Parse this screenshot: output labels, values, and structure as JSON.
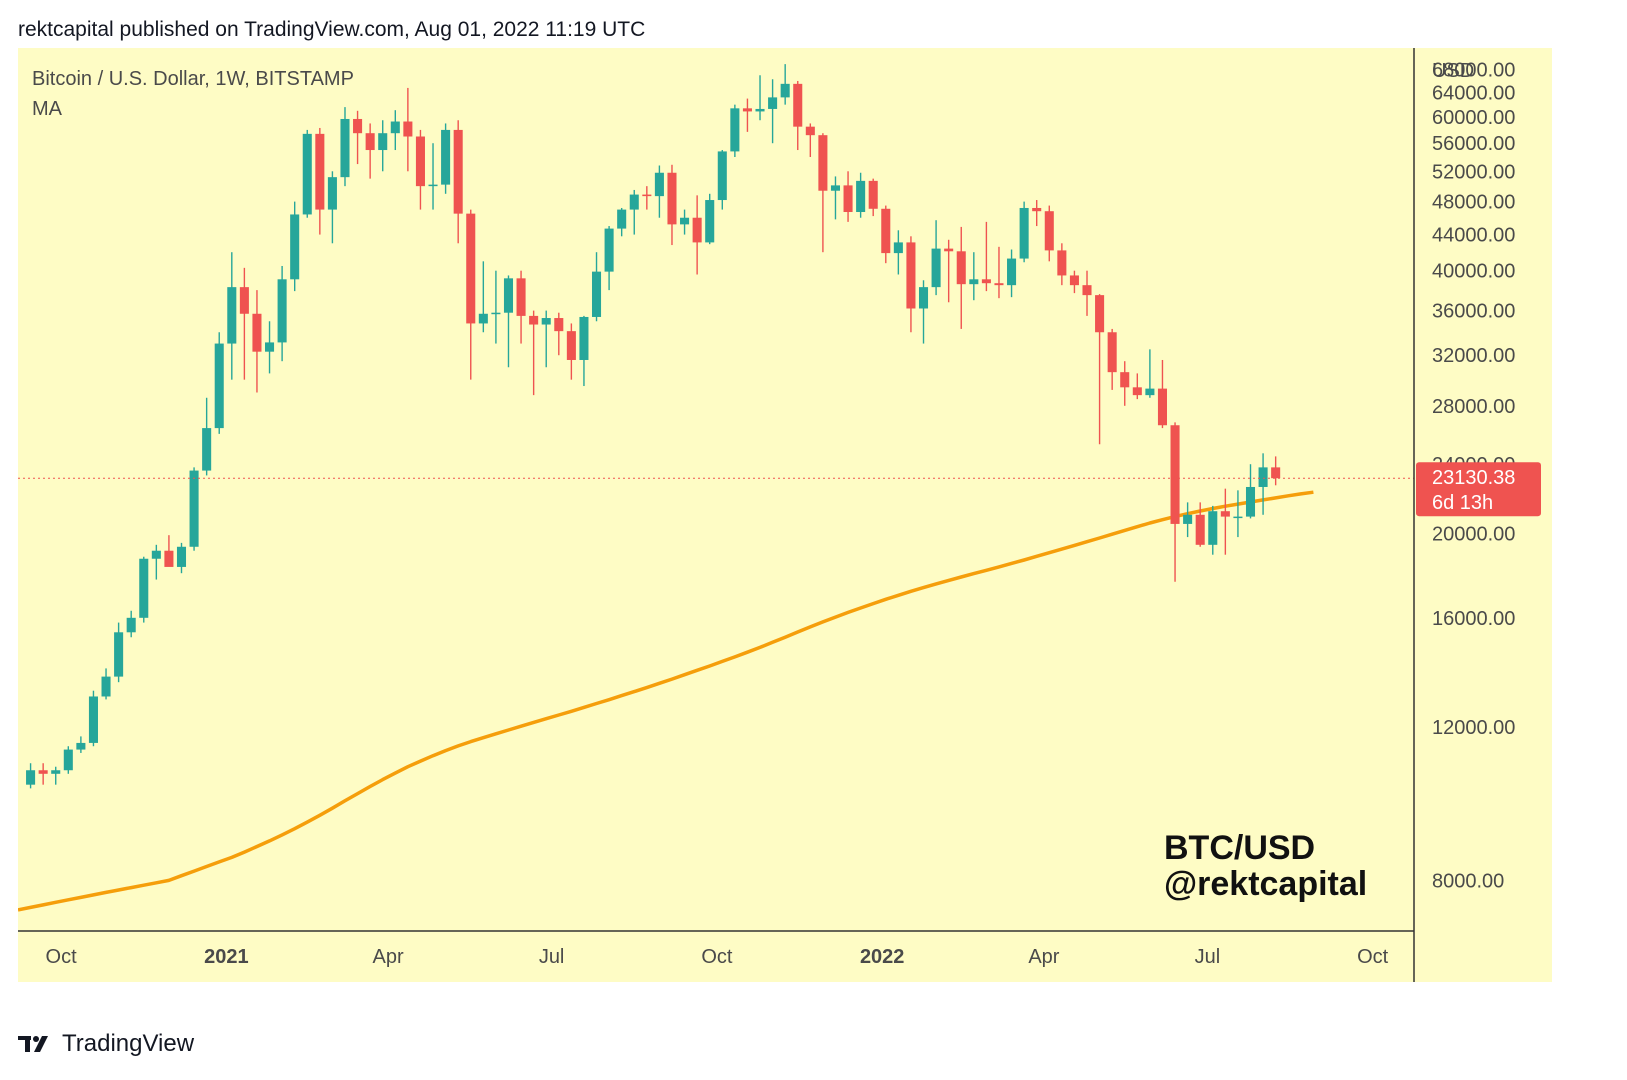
{
  "header": {
    "published_line": "rektcapital published on TradingView.com, Aug 01, 2022 11:19 UTC"
  },
  "legend": {
    "symbol_line": "Bitcoin / U.S. Dollar, 1W, BITSTAMP",
    "indicator": "MA"
  },
  "watermark": {
    "line1": "BTC/USD",
    "line2": "@rektcapital"
  },
  "price_tag": {
    "price": "23130.38",
    "countdown": "6d 13h",
    "price_value": 23130.38
  },
  "footer": {
    "brand": "TradingView",
    "logo_text": "17"
  },
  "colors": {
    "background": "#fefcc5",
    "up": "#26a69a",
    "down": "#ef5350",
    "ma": "#f59e0b",
    "axis_text": "#4a4a4a",
    "price_tag": "#ef5350"
  },
  "chart_data": {
    "type": "candlestick",
    "title": "",
    "timeframe": "1W",
    "ylabel": "USD",
    "y_scale": "log",
    "ylim": [
      7000,
      72000
    ],
    "xlim": [
      "2020-09-07",
      "2022-10-24"
    ],
    "yticks": [
      "68000.00",
      "64000.00",
      "60000.00",
      "56000.00",
      "52000.00",
      "48000.00",
      "44000.00",
      "40000.00",
      "36000.00",
      "32000.00",
      "28000.00",
      "24000.00",
      "20000.00",
      "16000.00",
      "12000.00",
      "8000.00"
    ],
    "ytick_values": [
      68000,
      64000,
      60000,
      56000,
      52000,
      48000,
      44000,
      40000,
      36000,
      32000,
      28000,
      24000,
      20000,
      16000,
      12000,
      8000
    ],
    "xticks": [
      {
        "label": "Oct",
        "date": "2020-10-01",
        "bold": false
      },
      {
        "label": "2021",
        "date": "2021-01-01",
        "bold": true
      },
      {
        "label": "Apr",
        "date": "2021-04-01",
        "bold": false
      },
      {
        "label": "Jul",
        "date": "2021-07-01",
        "bold": false
      },
      {
        "label": "Oct",
        "date": "2021-10-01",
        "bold": false
      },
      {
        "label": "2022",
        "date": "2022-01-01",
        "bold": true
      },
      {
        "label": "Apr",
        "date": "2022-04-01",
        "bold": false
      },
      {
        "label": "Jul",
        "date": "2022-07-01",
        "bold": false
      },
      {
        "label": "Oct",
        "date": "2022-10-01",
        "bold": false
      }
    ],
    "grid": false,
    "first_candle_date": "2020-09-14",
    "candle_interval_days": 7,
    "candles": [
      [
        10300,
        10900,
        10200,
        10700
      ],
      [
        10700,
        10900,
        10300,
        10600
      ],
      [
        10600,
        10800,
        10300,
        10700
      ],
      [
        10700,
        11400,
        10600,
        11300
      ],
      [
        11300,
        11700,
        11200,
        11500
      ],
      [
        11500,
        13200,
        11400,
        13000
      ],
      [
        13000,
        14000,
        12900,
        13700
      ],
      [
        13700,
        15800,
        13500,
        15400
      ],
      [
        15400,
        16300,
        15200,
        16000
      ],
      [
        16000,
        18800,
        15800,
        18700
      ],
      [
        18700,
        19400,
        17700,
        19100
      ],
      [
        19100,
        19900,
        18700,
        18300
      ],
      [
        18300,
        19500,
        18000,
        19300
      ],
      [
        19300,
        23800,
        19100,
        23600
      ],
      [
        23600,
        28600,
        23300,
        26400
      ],
      [
        26400,
        34000,
        26000,
        33000
      ],
      [
        33000,
        42000,
        30000,
        38300
      ],
      [
        38300,
        40300,
        30000,
        35700
      ],
      [
        35700,
        38000,
        29000,
        32300
      ],
      [
        32300,
        35000,
        30500,
        33100
      ],
      [
        33100,
        40500,
        31500,
        39100
      ],
      [
        39100,
        48000,
        37900,
        46400
      ],
      [
        46400,
        58000,
        46000,
        57400
      ],
      [
        57400,
        58300,
        44000,
        47000
      ],
      [
        47000,
        52000,
        43000,
        51200
      ],
      [
        51200,
        61600,
        50000,
        59700
      ],
      [
        59700,
        61000,
        53000,
        57500
      ],
      [
        57500,
        59000,
        51000,
        55000
      ],
      [
        55000,
        59500,
        52000,
        57500
      ],
      [
        57500,
        61100,
        55000,
        59300
      ],
      [
        59300,
        64800,
        52000,
        57000
      ],
      [
        57000,
        58000,
        47000,
        50000
      ],
      [
        50000,
        56000,
        47000,
        50200
      ],
      [
        50200,
        59000,
        49000,
        58000
      ],
      [
        58000,
        59500,
        43000,
        46500
      ],
      [
        46500,
        47000,
        30000,
        34800
      ],
      [
        34800,
        41000,
        34000,
        35700
      ],
      [
        35700,
        40000,
        33000,
        35800
      ],
      [
        35800,
        39500,
        31000,
        39200
      ],
      [
        39200,
        40000,
        33000,
        35500
      ],
      [
        35500,
        36000,
        28800,
        34700
      ],
      [
        34700,
        36000,
        31000,
        35300
      ],
      [
        35300,
        35800,
        32000,
        34100
      ],
      [
        34100,
        34800,
        30000,
        31600
      ],
      [
        31600,
        35500,
        29500,
        35400
      ],
      [
        35400,
        42000,
        35000,
        39900
      ],
      [
        39900,
        45000,
        38000,
        44700
      ],
      [
        44700,
        47200,
        43800,
        47000
      ],
      [
        47000,
        49500,
        44000,
        48900
      ],
      [
        48900,
        50000,
        47000,
        48700
      ],
      [
        48700,
        52800,
        46000,
        51800
      ],
      [
        51800,
        52900,
        42800,
        45200
      ],
      [
        45200,
        47000,
        44000,
        46000
      ],
      [
        46000,
        48800,
        39600,
        43100
      ],
      [
        43100,
        49000,
        42900,
        48200
      ],
      [
        48200,
        55000,
        47000,
        54800
      ],
      [
        54800,
        62000,
        54000,
        61400
      ],
      [
        61400,
        63000,
        57700,
        60900
      ],
      [
        60900,
        67000,
        59500,
        61300
      ],
      [
        61300,
        66300,
        56000,
        63200
      ],
      [
        63200,
        69000,
        62000,
        65500
      ],
      [
        65500,
        66000,
        55000,
        58500
      ],
      [
        58500,
        59000,
        54000,
        57200
      ],
      [
        57200,
        57500,
        42000,
        49400
      ],
      [
        49400,
        51300,
        45800,
        50100
      ],
      [
        50100,
        52000,
        45500,
        46700
      ],
      [
        46700,
        51800,
        46000,
        50700
      ],
      [
        50700,
        51000,
        46200,
        47100
      ],
      [
        47100,
        47500,
        40800,
        41900
      ],
      [
        41900,
        44500,
        39600,
        43100
      ],
      [
        43100,
        43800,
        34000,
        36200
      ],
      [
        36200,
        39000,
        33000,
        38300
      ],
      [
        38300,
        45700,
        37500,
        42400
      ],
      [
        42400,
        43400,
        36800,
        42100
      ],
      [
        42100,
        44900,
        34300,
        38600
      ],
      [
        38600,
        42000,
        37000,
        39100
      ],
      [
        39100,
        45500,
        37900,
        38700
      ],
      [
        38700,
        42600,
        37200,
        38500
      ],
      [
        38500,
        42300,
        37300,
        41300
      ],
      [
        41300,
        48000,
        40900,
        47200
      ],
      [
        47200,
        48200,
        45000,
        46800
      ],
      [
        46800,
        47500,
        41000,
        42200
      ],
      [
        42200,
        43000,
        38500,
        39500
      ],
      [
        39500,
        40000,
        37700,
        38500
      ],
      [
        38500,
        40000,
        35500,
        37500
      ],
      [
        37500,
        37600,
        25300,
        34000
      ],
      [
        34000,
        34300,
        29200,
        30600
      ],
      [
        30600,
        31500,
        28000,
        29400
      ],
      [
        29400,
        30500,
        28500,
        28800
      ],
      [
        28800,
        32500,
        28600,
        29300
      ],
      [
        29300,
        31600,
        26400,
        26600
      ],
      [
        26600,
        26800,
        17600,
        20500
      ],
      [
        20500,
        21700,
        19800,
        21000
      ],
      [
        21000,
        21700,
        19300,
        19400
      ],
      [
        19400,
        21500,
        18900,
        21200
      ],
      [
        21200,
        22500,
        18900,
        20900
      ],
      [
        20900,
        22400,
        19800,
        20900
      ],
      [
        20900,
        24000,
        20800,
        22600
      ],
      [
        22600,
        24700,
        21000,
        23800
      ],
      [
        23800,
        24500,
        22700,
        23130
      ]
    ],
    "ma_series": {
      "name": "MA",
      "first_date": "2020-09-07",
      "interval_days": 7,
      "values": [
        7400,
        7450,
        7500,
        7550,
        7600,
        7650,
        7700,
        7750,
        7800,
        7850,
        7900,
        7950,
        8000,
        8100,
        8200,
        8300,
        8400,
        8500,
        8620,
        8750,
        8880,
        9020,
        9170,
        9330,
        9500,
        9680,
        9870,
        10060,
        10250,
        10440,
        10620,
        10800,
        10960,
        11120,
        11270,
        11410,
        11540,
        11660,
        11780,
        11900,
        12020,
        12140,
        12260,
        12380,
        12500,
        12630,
        12760,
        12890,
        13030,
        13170,
        13310,
        13460,
        13610,
        13770,
        13930,
        14090,
        14260,
        14430,
        14610,
        14800,
        15000,
        15200,
        15410,
        15620,
        15830,
        16030,
        16230,
        16420,
        16610,
        16800,
        16980,
        17160,
        17330,
        17500,
        17660,
        17820,
        17980,
        18140,
        18300,
        18470,
        18640,
        18820,
        19000,
        19180,
        19370,
        19560,
        19750,
        19950,
        20150,
        20350,
        20550,
        20730,
        20900,
        21060,
        21210,
        21350,
        21480,
        21600,
        21720,
        21840,
        21960,
        22080,
        22190,
        22290
      ]
    }
  }
}
